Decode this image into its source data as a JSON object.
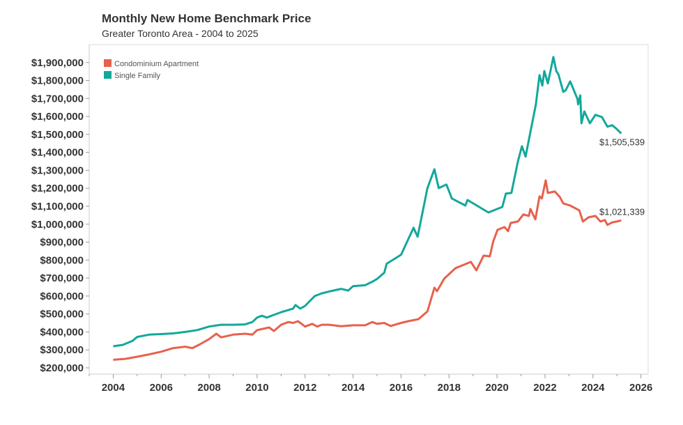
{
  "chart_data": {
    "type": "line",
    "title": "Monthly New Home Benchmark Price",
    "subtitle": "Greater Toronto Area - 2004 to 2025",
    "xlabel": "",
    "ylabel": "",
    "xlim": [
      2003,
      2026.3
    ],
    "ylim": [
      165000,
      2000000
    ],
    "grid": false,
    "legend_position": "top-left",
    "x_ticks": [
      "2004",
      "2006",
      "2008",
      "2010",
      "2012",
      "2014",
      "2016",
      "2018",
      "2020",
      "2022",
      "2024",
      "2026"
    ],
    "y_ticks": [
      "$200,000",
      "$300,000",
      "$400,000",
      "$500,000",
      "$600,000",
      "$700,000",
      "$800,000",
      "$900,000",
      "$1,000,000",
      "$1,100,000",
      "$1,200,000",
      "$1,300,000",
      "$1,400,000",
      "$1,500,000",
      "$1,600,000",
      "$1,700,000",
      "$1,800,000",
      "$1,900,000"
    ],
    "y_tick_values": [
      200000,
      300000,
      400000,
      500000,
      600000,
      700000,
      800000,
      900000,
      1000000,
      1100000,
      1200000,
      1300000,
      1400000,
      1500000,
      1600000,
      1700000,
      1800000,
      1900000
    ],
    "series": [
      {
        "name": "Condominium Apartment",
        "color": "#e8604c",
        "end_label": "$1,021,339",
        "x": [
          2004,
          2004.5,
          2005,
          2005.5,
          2006,
          2006.5,
          2007,
          2007.3,
          2007.6,
          2008,
          2008.3,
          2008.5,
          2009,
          2009.5,
          2009.8,
          2010,
          2010.5,
          2010.7,
          2011,
          2011.3,
          2011.5,
          2011.7,
          2012,
          2012.3,
          2012.5,
          2012.7,
          2013,
          2013.5,
          2014,
          2014.5,
          2014.8,
          2015,
          2015.3,
          2015.56,
          2016,
          2016.3,
          2016.72,
          2017.1,
          2017.39,
          2017.5,
          2017.8,
          2018.27,
          2018.62,
          2018.91,
          2019.14,
          2019.44,
          2019.7,
          2019.84,
          2020.02,
          2020.31,
          2020.46,
          2020.57,
          2020.87,
          2021.1,
          2021.33,
          2021.39,
          2021.6,
          2021.77,
          2021.87,
          2022.03,
          2022.12,
          2022.41,
          2022.62,
          2022.76,
          2023.05,
          2023.43,
          2023.58,
          2023.81,
          2024.1,
          2024.31,
          2024.5,
          2024.6,
          2024.8,
          2025.0,
          2025.18
        ],
        "y": [
          245000,
          250000,
          262000,
          275000,
          290000,
          310000,
          318000,
          310000,
          330000,
          360000,
          390000,
          370000,
          385000,
          390000,
          385000,
          410000,
          425000,
          405000,
          440000,
          455000,
          450000,
          460000,
          430000,
          445000,
          430000,
          440000,
          440000,
          432000,
          437000,
          437000,
          455000,
          445000,
          450000,
          433000,
          450000,
          460000,
          471000,
          514000,
          646000,
          627000,
          697000,
          755000,
          774000,
          790000,
          743000,
          825000,
          821000,
          902000,
          968000,
          984000,
          961000,
          1007000,
          1015000,
          1054000,
          1046000,
          1085000,
          1027000,
          1155000,
          1143000,
          1244000,
          1174000,
          1182000,
          1151000,
          1116000,
          1104000,
          1077000,
          1015000,
          1038000,
          1046000,
          1015000,
          1023000,
          996000,
          1010000,
          1015000,
          1021339
        ]
      },
      {
        "name": "Single Family",
        "color": "#12a89a",
        "end_label": "$1,505,539",
        "x": [
          2004,
          2004.4,
          2004.8,
          2005,
          2005.5,
          2006,
          2006.5,
          2007,
          2007.5,
          2008,
          2008.5,
          2009,
          2009.5,
          2009.8,
          2010,
          2010.2,
          2010.4,
          2010.7,
          2011,
          2011.5,
          2011.6,
          2011.8,
          2012,
          2012.4,
          2012.7,
          2013,
          2013.5,
          2013.8,
          2014,
          2014.5,
          2014.8,
          2015,
          2015.3,
          2015.4,
          2015.56,
          2016,
          2016.52,
          2016.69,
          2017.1,
          2017.39,
          2017.57,
          2017.89,
          2018.12,
          2018.68,
          2018.77,
          2019.64,
          2020.22,
          2020.37,
          2020.6,
          2020.87,
          2021.04,
          2021.19,
          2021.39,
          2021.62,
          2021.77,
          2021.89,
          2021.97,
          2022.12,
          2022.35,
          2022.47,
          2022.56,
          2022.76,
          2022.86,
          2023.05,
          2023.35,
          2023.38,
          2023.47,
          2023.52,
          2023.64,
          2023.87,
          2024.1,
          2024.37,
          2024.6,
          2024.8,
          2024.98,
          2025.18
        ],
        "y": [
          320000,
          328000,
          350000,
          372000,
          385000,
          388000,
          392000,
          400000,
          410000,
          430000,
          440000,
          440000,
          442000,
          455000,
          480000,
          490000,
          480000,
          495000,
          510000,
          530000,
          550000,
          530000,
          545000,
          600000,
          615000,
          625000,
          640000,
          630000,
          655000,
          660000,
          680000,
          695000,
          730000,
          780000,
          793000,
          830000,
          980000,
          930000,
          1201000,
          1306000,
          1201000,
          1221000,
          1143000,
          1104000,
          1135000,
          1065000,
          1096000,
          1170000,
          1174000,
          1349000,
          1434000,
          1376000,
          1512000,
          1667000,
          1830000,
          1772000,
          1853000,
          1784000,
          1931000,
          1853000,
          1834000,
          1737000,
          1745000,
          1795000,
          1698000,
          1667000,
          1717000,
          1562000,
          1628000,
          1562000,
          1609000,
          1597000,
          1543000,
          1551000,
          1531000,
          1505539
        ]
      }
    ]
  }
}
